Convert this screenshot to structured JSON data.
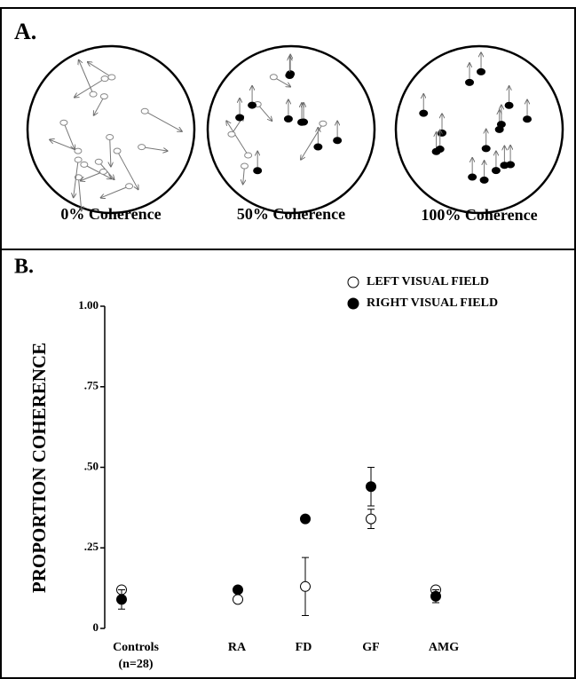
{
  "panel_a": {
    "label": "A.",
    "captions": [
      "0% Coherence",
      "50% Coherence",
      "100% Coherence"
    ]
  },
  "chart_data": {
    "type": "scatter",
    "panel_label": "B.",
    "y_label": "PROPORTION COHERENCE",
    "categories": [
      "Controls",
      "RA",
      "FD",
      "GF",
      "AMG"
    ],
    "category_notes": [
      "(n=28)",
      null,
      null,
      null,
      null
    ],
    "series": [
      {
        "name": "LEFT VISUAL FIELD",
        "color": "#ffffff",
        "values": [
          0.12,
          0.09,
          0.13,
          0.34,
          0.12
        ],
        "errors": [
          null,
          null,
          0.09,
          0.03,
          null
        ]
      },
      {
        "name": "RIGHT VISUAL FIELD",
        "color": "#000000",
        "values": [
          0.09,
          0.12,
          0.34,
          0.44,
          0.1
        ],
        "errors": [
          0.03,
          null,
          null,
          0.06,
          0.02
        ]
      }
    ],
    "ylim": [
      0,
      1
    ],
    "yticks": [
      0,
      {
        "value": 0.25,
        "label": ".25"
      },
      {
        "value": 0.5,
        "label": ".50"
      },
      {
        "value": 0.75,
        "label": ".75"
      },
      {
        "value": 1,
        "label": "1.00"
      }
    ]
  }
}
